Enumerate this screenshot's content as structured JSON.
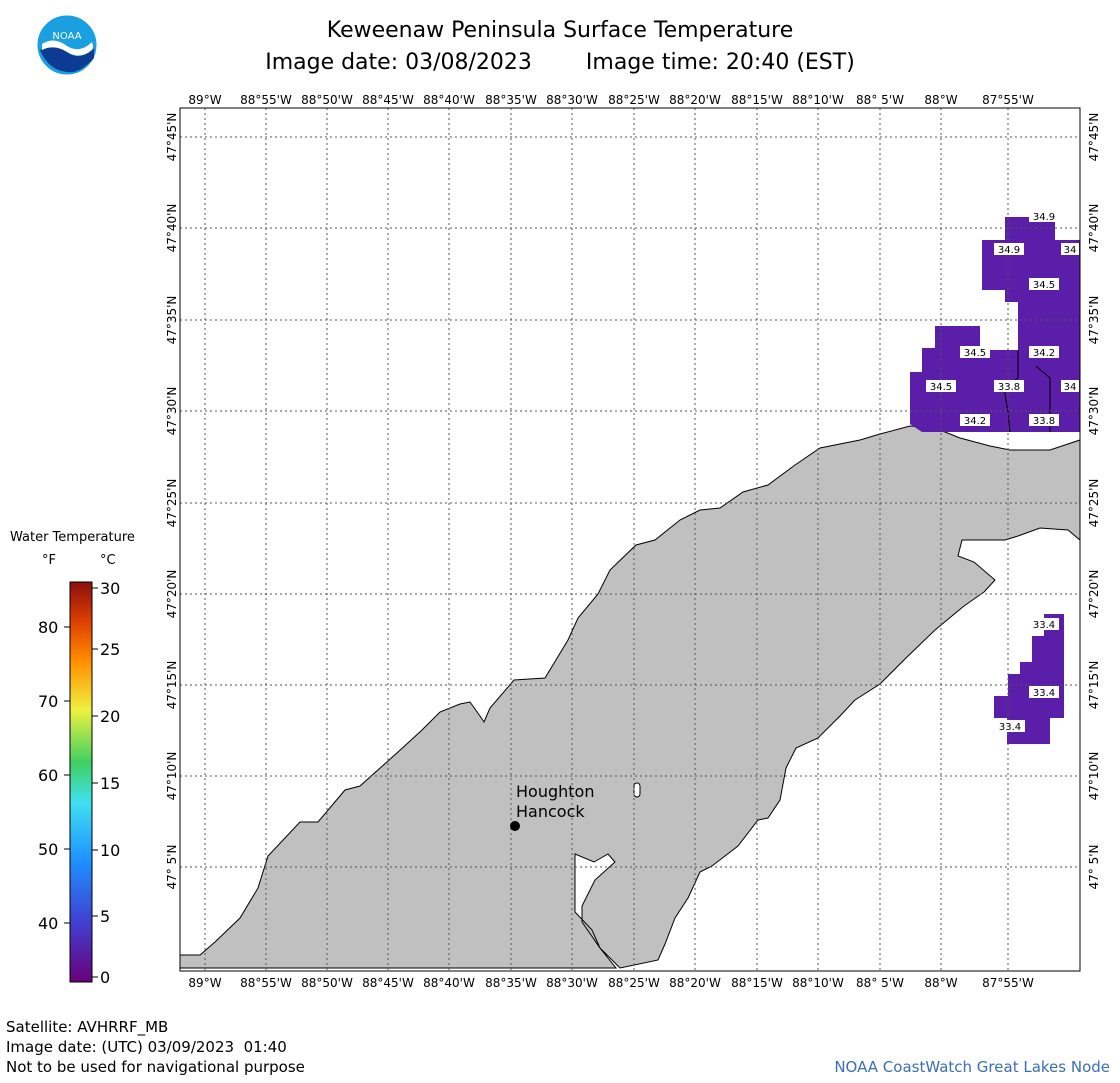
{
  "header": {
    "title": "Keweenaw Peninsula Surface Temperature",
    "image_date": "Image date: 03/08/2023",
    "image_time": "Image time: 20:40 (EST)"
  },
  "logo": {
    "text": "NOAA",
    "icon": "noaa-logo"
  },
  "axes": {
    "lon_labels": [
      "89°W",
      "88°55'W",
      "88°50'W",
      "88°45'W",
      "88°40'W",
      "88°35'W",
      "88°30'W",
      "88°25'W",
      "88°20'W",
      "88°15'W",
      "88°10'W",
      "88° 5'W",
      "88°W",
      "87°55'W"
    ],
    "lat_labels": [
      "47°45'N",
      "47°40'N",
      "47°35'N",
      "47°30'N",
      "47°25'N",
      "47°20'N",
      "47°15'N",
      "47°10'N",
      "47° 5'N"
    ]
  },
  "place": {
    "line1": "Houghton",
    "line2": "Hancock"
  },
  "temps": [
    {
      "id": "t1",
      "value": "34.9"
    },
    {
      "id": "t2",
      "value": "34.9"
    },
    {
      "id": "t3",
      "value": "34"
    },
    {
      "id": "t4",
      "value": "34.5"
    },
    {
      "id": "t5",
      "value": "34.5"
    },
    {
      "id": "t6",
      "value": "34.2"
    },
    {
      "id": "t7",
      "value": "34.5"
    },
    {
      "id": "t8",
      "value": "33.8"
    },
    {
      "id": "t9",
      "value": "34"
    },
    {
      "id": "t10",
      "value": "34.2"
    },
    {
      "id": "t11",
      "value": "33.8"
    },
    {
      "id": "t12",
      "value": "33.4"
    },
    {
      "id": "t13",
      "value": "33.4"
    },
    {
      "id": "t14",
      "value": "33.4"
    }
  ],
  "legend": {
    "title": "Water Temperature",
    "unit_f": "°F",
    "unit_c": "°C",
    "f_ticks": [
      "80",
      "70",
      "60",
      "50",
      "40"
    ],
    "c_ticks": [
      "30",
      "25",
      "20",
      "15",
      "10",
      "5",
      "0"
    ]
  },
  "footer": {
    "satellite": "Satellite: AVHRRF_MB",
    "utc": "Image date: (UTC) 03/09/2023  01:40",
    "warning": "Not to be used for navigational purpose",
    "credit": "NOAA CoastWatch Great Lakes Node"
  },
  "colors": {
    "land": "#c0c0c0",
    "water_temp": "#5a1ea8",
    "credit": "#3b6fb3"
  }
}
